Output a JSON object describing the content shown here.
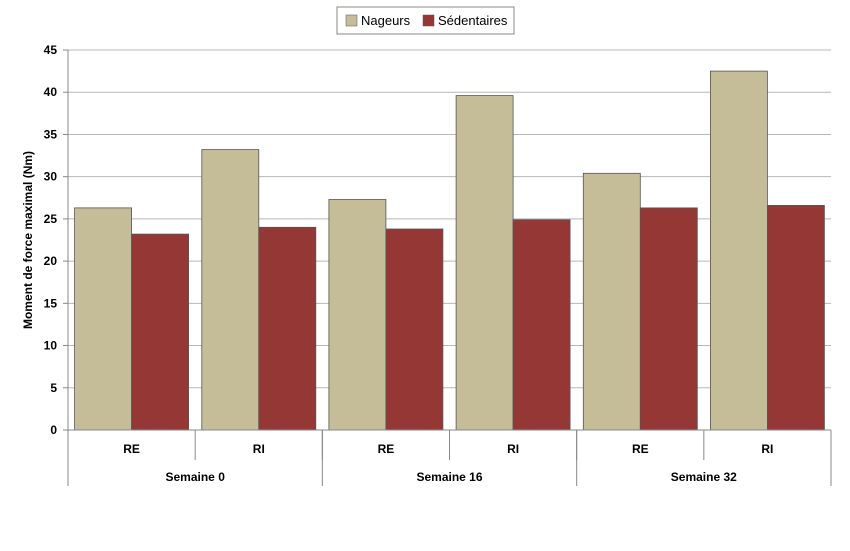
{
  "chart_data": {
    "type": "bar",
    "ylabel": "Moment de force maximal (Nm)",
    "ylim": [
      0,
      45
    ],
    "ytick_step": 5,
    "grid": true,
    "legend_position": "top-center",
    "groups": [
      {
        "label": "Semaine 0",
        "categories": [
          "RE",
          "RI"
        ]
      },
      {
        "label": "Semaine 16",
        "categories": [
          "RE",
          "RI"
        ]
      },
      {
        "label": "Semaine 32",
        "categories": [
          "RE",
          "RI"
        ]
      }
    ],
    "series": [
      {
        "name": "Nageurs",
        "color": "#c4bd97",
        "values": [
          26.3,
          33.2,
          27.3,
          39.6,
          30.4,
          42.5
        ]
      },
      {
        "name": "Sédentaires",
        "color": "#953735",
        "values": [
          23.2,
          24.0,
          23.8,
          24.9,
          26.3,
          26.6
        ]
      }
    ]
  }
}
